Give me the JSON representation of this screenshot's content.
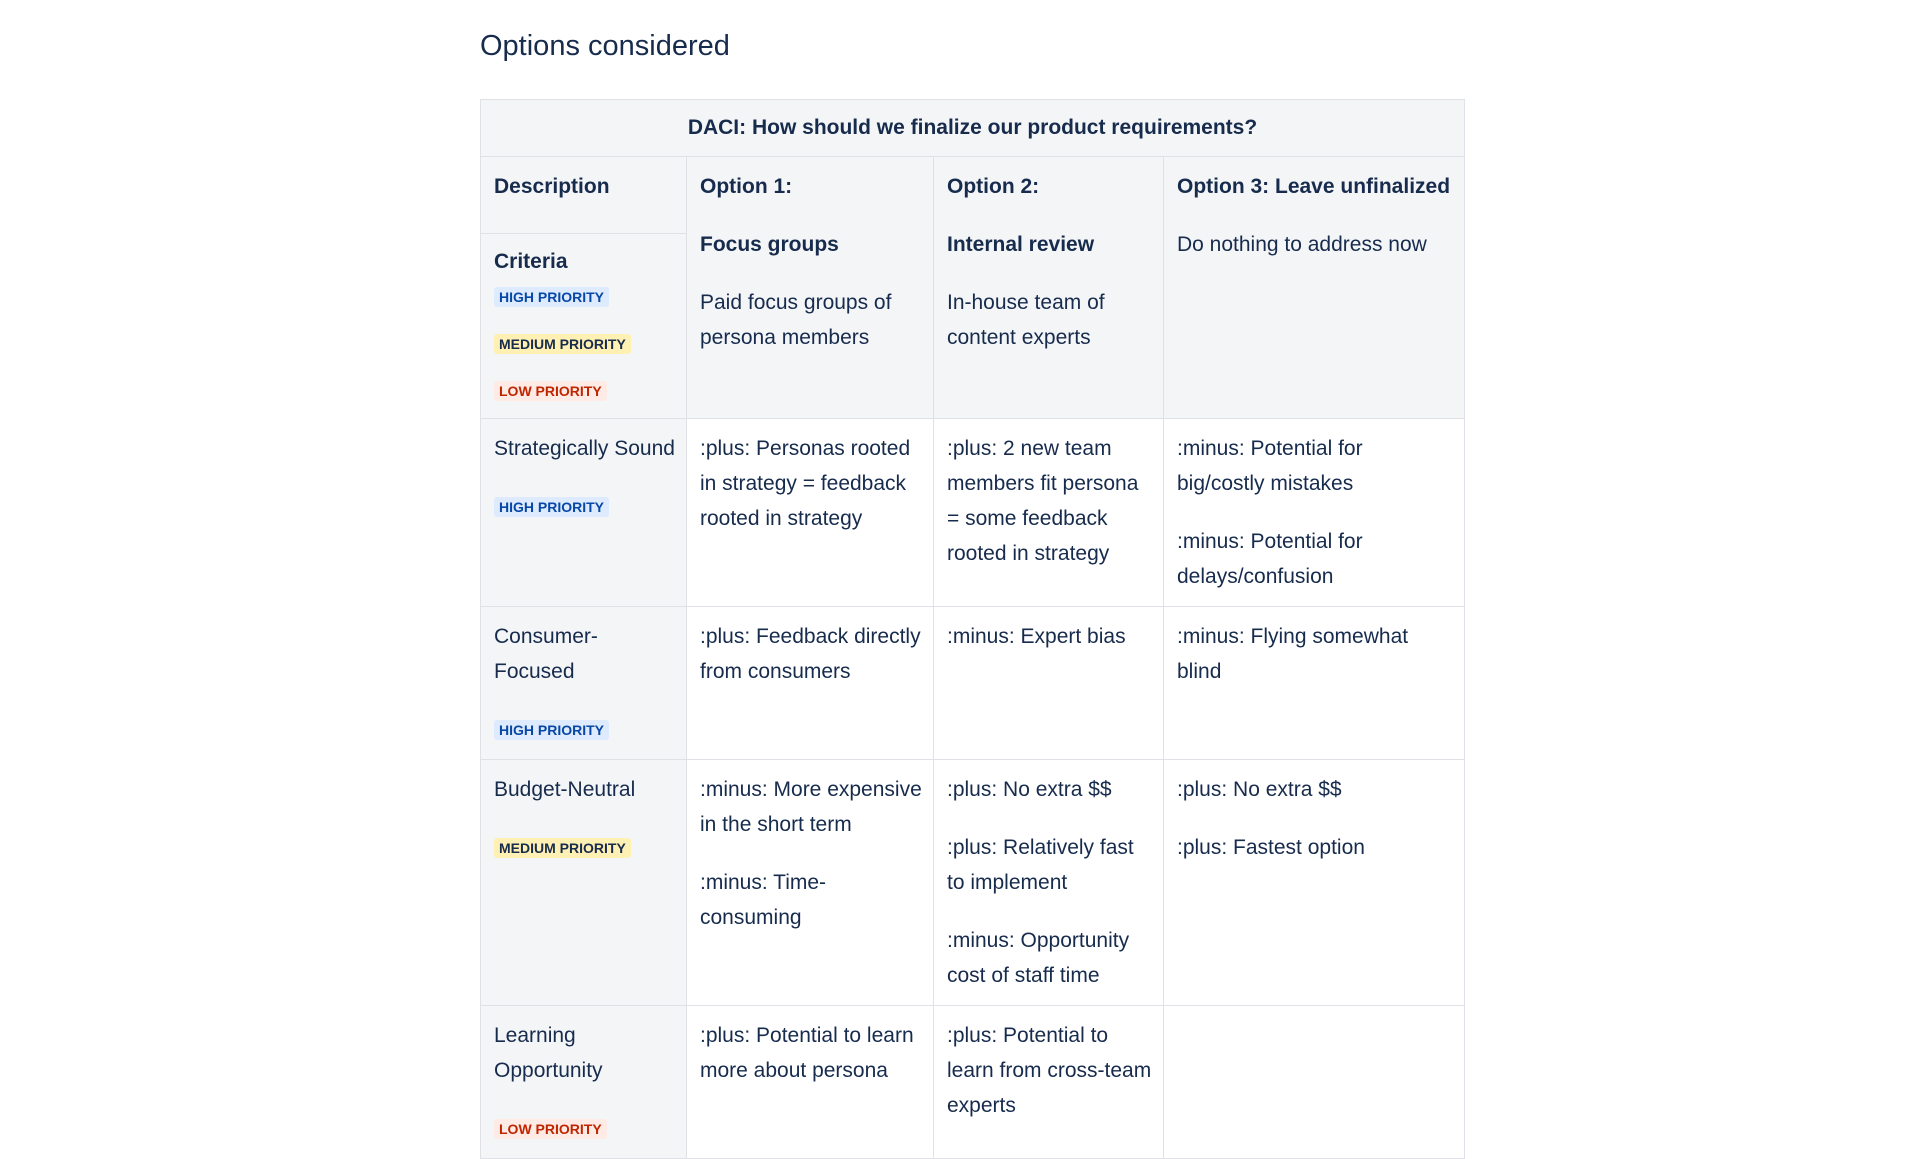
{
  "heading": "Options considered",
  "table": {
    "caption": "DACI: How should we finalize our product requirements?",
    "description_label": "Description",
    "criteria_label": "Criteria",
    "priorities": {
      "high": "HIGH PRIORITY",
      "medium": "MEDIUM PRIORITY",
      "low": "LOW PRIORITY"
    },
    "options": [
      {
        "label": "Option 1:",
        "name": "Focus groups",
        "desc": "Paid focus groups of persona members"
      },
      {
        "label": "Option 2:",
        "name": "Internal review",
        "desc": "In-house team of content experts"
      },
      {
        "label": "Option 3: Leave unfinalized",
        "name": "",
        "desc": "Do nothing to address now"
      }
    ],
    "rows": [
      {
        "criterion": "Strategically Sound",
        "priority": "HIGH PRIORITY",
        "cells": [
          [
            ":plus: Personas rooted in strategy = feedback rooted in strategy"
          ],
          [
            ":plus:  2 new team members fit persona = some feedback rooted in strategy"
          ],
          [
            ":minus:  Potential for big/costly mistakes",
            ":minus:  Potential for delays/confusion"
          ]
        ]
      },
      {
        "criterion": "Consumer-Focused",
        "priority": "HIGH PRIORITY",
        "cells": [
          [
            ":plus: Feedback directly from consumers"
          ],
          [
            ":minus: Expert bias"
          ],
          [
            " :minus:  Flying somewhat blind"
          ]
        ]
      },
      {
        "criterion": "Budget-Neutral",
        "priority": "MEDIUM PRIORITY",
        "cells": [
          [
            ":minus: More expensive in the short term",
            ":minus: Time-consuming"
          ],
          [
            ":plus: No extra $$",
            ":plus:  Relatively fast to implement",
            ":minus: Opportunity cost of staff time"
          ],
          [
            ":plus: No extra $$",
            ":plus:  Fastest option"
          ]
        ]
      },
      {
        "criterion": "Learning Opportunity",
        "priority": "LOW PRIORITY",
        "cells": [
          [
            ":plus:  Potential to learn more about persona"
          ],
          [
            ":plus:  Potential to learn from cross-team experts"
          ],
          []
        ]
      }
    ]
  }
}
